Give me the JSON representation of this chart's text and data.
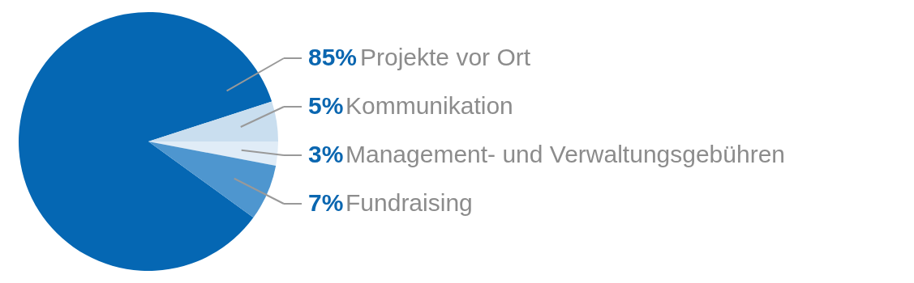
{
  "chart_data": {
    "type": "pie",
    "categories": [
      "Projekte vor Ort",
      "Kommunikation",
      "Management- und Verwaltungsgebühren",
      "Fundraising"
    ],
    "values": [
      85,
      5,
      3,
      7
    ],
    "value_labels": [
      "85%",
      "5%",
      "3%",
      "7%"
    ],
    "colors": [
      "#0567b3",
      "#c9deef",
      "#e0ecf7",
      "#4e96cf"
    ]
  }
}
